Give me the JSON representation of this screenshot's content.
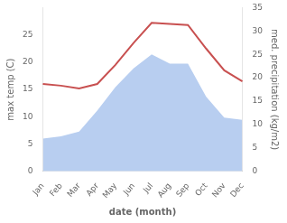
{
  "chart_data": {
    "type": "line",
    "categories": [
      "Jan",
      "Feb",
      "Mar",
      "Apr",
      "May",
      "Jun",
      "Jul",
      "Aug",
      "Sep",
      "Oct",
      "Nov",
      "Dec"
    ],
    "xlabel": "date (month)",
    "ylabel": "max temp (C)",
    "y2label": "med. precipitation (kg/m2)",
    "series": [
      {
        "type": "area",
        "axis": "y2",
        "color": "#b8cef0",
        "values": [
          7.0,
          7.5,
          8.5,
          13.0,
          18.0,
          22.0,
          25.0,
          23.0,
          23.0,
          16.0,
          11.5,
          11.0
        ]
      },
      {
        "type": "line",
        "color": "#c85050",
        "values": [
          16.0,
          15.7,
          15.2,
          16.0,
          19.5,
          23.5,
          27.2,
          27.0,
          26.8,
          22.5,
          18.5,
          16.5
        ]
      }
    ],
    "ylim": [
      0,
      30
    ],
    "yticks": [
      0,
      5,
      10,
      15,
      20,
      25
    ],
    "y2lim": [
      0,
      35
    ],
    "y2ticks": [
      0,
      5,
      10,
      15,
      20,
      25,
      30,
      35
    ],
    "grid": false
  }
}
